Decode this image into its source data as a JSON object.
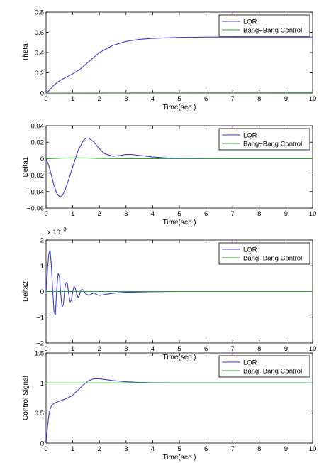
{
  "chart_data": [
    {
      "type": "line",
      "title": "",
      "xlabel": "Time(sec.)",
      "ylabel": "Theta",
      "xlim": [
        0,
        10
      ],
      "ylim": [
        0,
        0.8
      ],
      "xticks": [
        0,
        1,
        2,
        3,
        4,
        5,
        6,
        7,
        8,
        9,
        10
      ],
      "yticks": [
        0,
        0.2,
        0.4,
        0.6,
        0.8
      ],
      "ytick_labels": [
        "0",
        "0.2",
        "0.4",
        "0.6",
        "0.8"
      ],
      "exponent_label": "",
      "legend": "top-right",
      "grid": false,
      "series": [
        {
          "name": "LQR",
          "color": "#3a3adc",
          "x": [
            0,
            0.1,
            0.2,
            0.3,
            0.5,
            0.7,
            1.0,
            1.3,
            1.6,
            2.0,
            2.5,
            3.0,
            3.5,
            4.0,
            5.0,
            6.0,
            7.0,
            8.0,
            9.0,
            10.0
          ],
          "y": [
            0,
            0.02,
            0.05,
            0.08,
            0.12,
            0.15,
            0.19,
            0.24,
            0.31,
            0.4,
            0.47,
            0.51,
            0.53,
            0.54,
            0.55,
            0.552,
            0.553,
            0.553,
            0.553,
            0.553
          ]
        },
        {
          "name": "Bang−Bang Control",
          "color": "#2e9e2e",
          "x": [
            0,
            10
          ],
          "y": [
            0,
            0.003
          ]
        }
      ]
    },
    {
      "type": "line",
      "title": "",
      "xlabel": "Time(sec.)",
      "ylabel": "Delta1",
      "xlim": [
        0,
        10
      ],
      "ylim": [
        -0.06,
        0.04
      ],
      "xticks": [
        0,
        1,
        2,
        3,
        4,
        5,
        6,
        7,
        8,
        9,
        10
      ],
      "yticks": [
        -0.06,
        -0.04,
        -0.02,
        0,
        0.02,
        0.04
      ],
      "ytick_labels": [
        "−0.06",
        "−0.04",
        "−0.02",
        "0",
        "0.02",
        "0.04"
      ],
      "exponent_label": "",
      "legend": "top-right",
      "grid": false,
      "series": [
        {
          "name": "LQR",
          "color": "#3a3adc",
          "x": [
            0,
            0.1,
            0.2,
            0.3,
            0.4,
            0.5,
            0.6,
            0.7,
            0.8,
            1.0,
            1.2,
            1.4,
            1.5,
            1.6,
            1.8,
            2.0,
            2.2,
            2.5,
            2.8,
            3.0,
            3.2,
            3.5,
            4.0,
            4.5,
            5.0,
            6.0,
            7.0,
            8.0,
            10.0
          ],
          "y": [
            0,
            -0.008,
            -0.02,
            -0.033,
            -0.042,
            -0.046,
            -0.045,
            -0.039,
            -0.03,
            -0.01,
            0.01,
            0.022,
            0.025,
            0.025,
            0.02,
            0.012,
            0.006,
            0.003,
            0.004,
            0.005,
            0.005,
            0.004,
            0.002,
            0.001,
            0.0005,
            0.0002,
            0,
            0,
            0
          ]
        },
        {
          "name": "Bang−Bang Control",
          "color": "#2e9e2e",
          "x": [
            0,
            0.5,
            1.0,
            1.5,
            2.0,
            3.0,
            10.0
          ],
          "y": [
            0,
            0.0005,
            0.001,
            0.0008,
            0.0003,
            0,
            0
          ]
        }
      ]
    },
    {
      "type": "line",
      "title": "",
      "xlabel": "Time(sec.)",
      "ylabel": "Delta2",
      "xlim": [
        0,
        10
      ],
      "ylim": [
        -2,
        2
      ],
      "xticks": [
        0,
        1,
        2,
        3,
        4,
        5,
        6,
        7,
        8,
        9,
        10
      ],
      "yticks": [
        -2,
        -1,
        0,
        1,
        2
      ],
      "ytick_labels": [
        "−2",
        "−1",
        "0",
        "1",
        "2"
      ],
      "exponent_label": "x 10",
      "exponent_power": "−3",
      "legend": "top-right",
      "grid": false,
      "series": [
        {
          "name": "LQR",
          "color": "#3a3adc",
          "x": [
            0,
            0.05,
            0.1,
            0.15,
            0.2,
            0.25,
            0.3,
            0.35,
            0.4,
            0.45,
            0.5,
            0.55,
            0.6,
            0.65,
            0.7,
            0.75,
            0.8,
            0.85,
            0.9,
            0.95,
            1.0,
            1.05,
            1.1,
            1.15,
            1.2,
            1.25,
            1.3,
            1.35,
            1.4,
            1.5,
            1.6,
            1.7,
            1.8,
            1.9,
            2.0,
            2.2,
            2.4,
            2.6,
            2.8,
            3.0,
            3.5,
            4.0,
            5.0,
            6.0,
            10.0
          ],
          "y": [
            0,
            0.8,
            1.45,
            1.6,
            1.0,
            0.0,
            -0.8,
            -0.9,
            0.1,
            0.7,
            0.6,
            -0.1,
            -0.6,
            -0.5,
            0.1,
            0.35,
            0.3,
            -0.1,
            -0.4,
            -0.35,
            0.0,
            0.2,
            0.12,
            -0.1,
            -0.22,
            -0.15,
            0.05,
            0.08,
            0.05,
            -0.1,
            -0.15,
            -0.1,
            -0.05,
            -0.12,
            -0.15,
            -0.12,
            -0.08,
            -0.06,
            -0.04,
            -0.03,
            -0.02,
            -0.01,
            0,
            0,
            0
          ]
        },
        {
          "name": "Bang−Bang Control",
          "color": "#2e9e2e",
          "x": [
            0,
            10
          ],
          "y": [
            0,
            0
          ]
        }
      ]
    },
    {
      "type": "line",
      "title": "",
      "xlabel": "Time(sec.)",
      "ylabel": "Control Signal",
      "xlim": [
        0,
        10
      ],
      "ylim": [
        0,
        1.5
      ],
      "xticks": [
        0,
        1,
        2,
        3,
        4,
        5,
        6,
        7,
        8,
        9,
        10
      ],
      "yticks": [
        0,
        0.5,
        1,
        1.5
      ],
      "ytick_labels": [
        "0",
        "0.5",
        "1",
        "1.5"
      ],
      "exponent_label": "",
      "legend": "top-right",
      "grid": false,
      "series": [
        {
          "name": "LQR",
          "color": "#3a3adc",
          "x": [
            0,
            0.05,
            0.1,
            0.15,
            0.2,
            0.3,
            0.4,
            0.5,
            0.7,
            0.9,
            1.0,
            1.2,
            1.4,
            1.6,
            1.8,
            2.0,
            2.5,
            3.0,
            3.5,
            4.0,
            5.0,
            6.0,
            7.0,
            10.0
          ],
          "y": [
            0,
            0.25,
            0.45,
            0.56,
            0.62,
            0.66,
            0.68,
            0.7,
            0.73,
            0.77,
            0.8,
            0.88,
            0.97,
            1.04,
            1.07,
            1.07,
            1.04,
            1.02,
            1.01,
            1.005,
            1.0,
            1.0,
            1.0,
            1.0
          ]
        },
        {
          "name": "Bang−Bang Control",
          "color": "#2e9e2e",
          "x": [
            0,
            10
          ],
          "y": [
            1,
            1
          ]
        }
      ]
    }
  ]
}
